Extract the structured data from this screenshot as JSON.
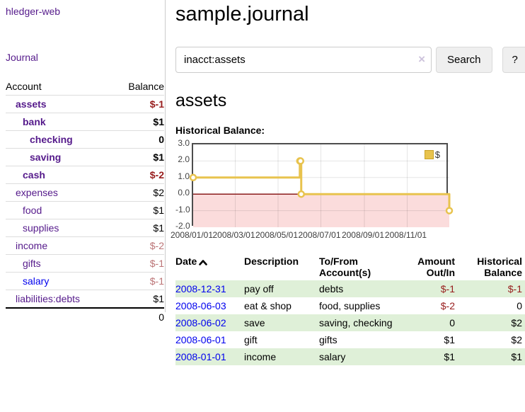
{
  "brand": "hledger-web",
  "nav": {
    "journal_label": "Journal"
  },
  "sidebar": {
    "columns": {
      "account": "Account",
      "balance": "Balance"
    },
    "accounts": [
      {
        "name": "assets",
        "indent": 1,
        "bold": true,
        "balance": "$-1"
      },
      {
        "name": "bank",
        "indent": 2,
        "bold": true,
        "balance": "$1"
      },
      {
        "name": "checking",
        "indent": 3,
        "bold": true,
        "balance": "0"
      },
      {
        "name": "saving",
        "indent": 3,
        "bold": true,
        "balance": "$1"
      },
      {
        "name": "cash",
        "indent": 2,
        "bold": true,
        "balance": "$-2"
      },
      {
        "name": "expenses",
        "indent": 1,
        "bold": false,
        "balance": "$2"
      },
      {
        "name": "food",
        "indent": 2,
        "bold": false,
        "balance": "$1"
      },
      {
        "name": "supplies",
        "indent": 2,
        "bold": false,
        "balance": "$1"
      },
      {
        "name": "income",
        "indent": 1,
        "bold": false,
        "balance": "$-2"
      },
      {
        "name": "gifts",
        "indent": 2,
        "bold": false,
        "balance": "$-1"
      },
      {
        "name": "salary",
        "indent": 2,
        "bold": false,
        "balance": "$-1",
        "unvisited": true
      },
      {
        "name": "liabilities:debts",
        "indent": 1,
        "bold": false,
        "balance": "$1"
      }
    ],
    "total": "0"
  },
  "header": {
    "title": "sample.journal"
  },
  "search": {
    "query": "inacct:assets",
    "clear_icon": "×",
    "button_label": "Search",
    "help_label": "?"
  },
  "account_page": {
    "heading": "assets",
    "chart_title": "Historical Balance:"
  },
  "chart_data": {
    "type": "line",
    "title": "Historical Balance:",
    "x_range": [
      "2008-01-01",
      "2008-12-31"
    ],
    "x_ticks": [
      "2008/01/01",
      "2008/03/01",
      "2008/05/01",
      "2008/07/01",
      "2008/09/01",
      "2008/11/01"
    ],
    "y_ticks": [
      "3.0",
      "2.0",
      "1.0",
      "0.0",
      "-1.0",
      "-2.0"
    ],
    "ylim": [
      -2,
      3
    ],
    "grid": true,
    "legend_position": "top-right",
    "series": [
      {
        "name": "$",
        "step": true,
        "color": "#e8c34e",
        "points": [
          [
            "2008-01-01",
            1
          ],
          [
            "2008-06-01",
            2
          ],
          [
            "2008-06-02",
            2
          ],
          [
            "2008-06-03",
            0
          ],
          [
            "2008-12-31",
            -1
          ]
        ]
      }
    ],
    "negative_region_color": "#fbdcdc",
    "zero_line_color": "#8b1c1c"
  },
  "register": {
    "columns": {
      "date": "Date",
      "description": "Description",
      "accounts": "To/From Account(s)",
      "amount": "Amount Out/In",
      "balance": "Historical Balance"
    },
    "rows": [
      {
        "date": "2008-12-31",
        "description": "pay off",
        "accounts": "debts",
        "amount": "$-1",
        "balance": "$-1"
      },
      {
        "date": "2008-06-03",
        "description": "eat & shop",
        "accounts": "food, supplies",
        "amount": "$-2",
        "balance": "0"
      },
      {
        "date": "2008-06-02",
        "description": "save",
        "accounts": "saving, checking",
        "amount": "0",
        "balance": "$2"
      },
      {
        "date": "2008-06-01",
        "description": "gift",
        "accounts": "gifts",
        "amount": "$1",
        "balance": "$2"
      },
      {
        "date": "2008-01-01",
        "description": "income",
        "accounts": "salary",
        "amount": "$1",
        "balance": "$1"
      }
    ]
  },
  "colors": {
    "link_purple": "#551a8b",
    "link_blue": "#0000ee",
    "negative_strong": "#971c1c",
    "negative_muted": "#bb7476",
    "row_stripe_green": "#dff0d8",
    "chart_gold": "#e8c34e",
    "chart_negative_fill": "#fbdcdc",
    "chart_zero_line": "#8b1c1c"
  }
}
